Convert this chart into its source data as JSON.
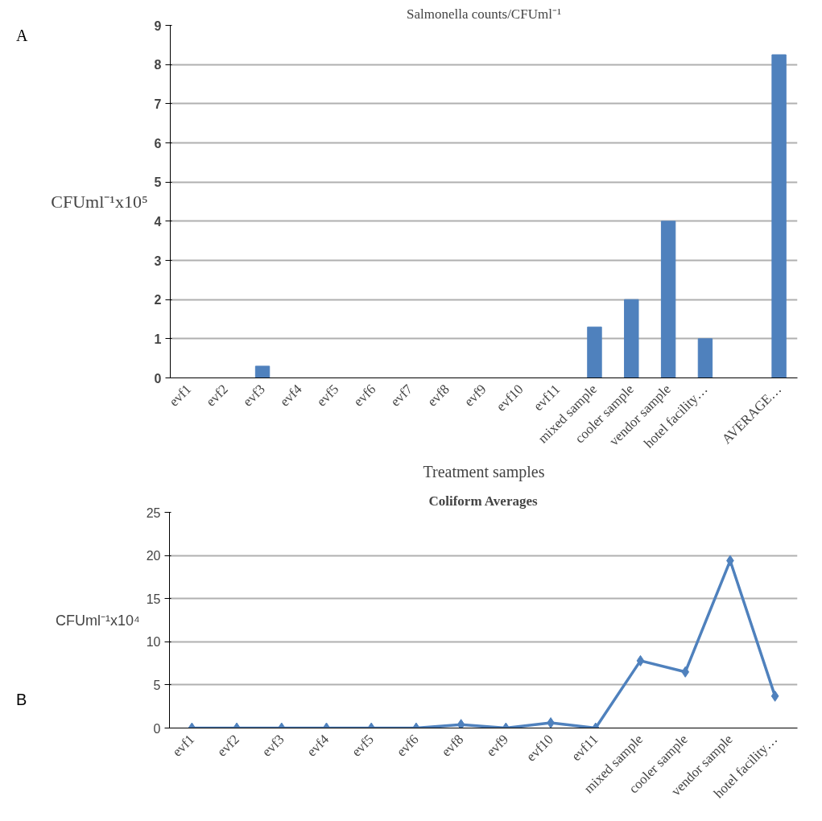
{
  "chart_data": [
    {
      "type": "bar",
      "title": "Salmonella counts/CFUml⁻¹",
      "xlabel": "Treatment samples",
      "ylabel": "CFUml⁻¹x10⁵",
      "annotations": [
        "A"
      ],
      "categories": [
        "evf1",
        "evf2",
        "evf3",
        "evf4",
        "evf5",
        "evf6",
        "evf7",
        "evf8",
        "evf9",
        "evf10",
        "evf11",
        "mixed sample",
        "cooler sample",
        "vendor sample",
        "hotel facility…",
        null,
        "AVERAGE…"
      ],
      "values": [
        0,
        0,
        0.3,
        0,
        0,
        0,
        0,
        0,
        0,
        0,
        0,
        1.3,
        2,
        4,
        1,
        null,
        8.25
      ],
      "color": "#4f81bd",
      "ylim": [
        0,
        9
      ],
      "yticks": [
        0,
        1,
        2,
        3,
        4,
        5,
        6,
        7,
        8,
        9
      ],
      "grid": "y"
    },
    {
      "type": "line",
      "title": "Coliform Averages",
      "ylabel": "CFUml⁻¹x10⁴",
      "annotations": [
        "B"
      ],
      "categories": [
        "evf1",
        "evf2",
        "evf3",
        "evf4",
        "evf5",
        "evf6",
        "evf8",
        "evf9",
        "evf10",
        "evf11",
        "mixed sample",
        "cooler sample",
        "vendor sample",
        "hotel facility…"
      ],
      "values": [
        0,
        0,
        0,
        0,
        0,
        0,
        0.4,
        0,
        0.6,
        0,
        7.8,
        6.5,
        19.4,
        3.7
      ],
      "color": "#4f81bd",
      "ylim": [
        0,
        25
      ],
      "yticks": [
        0,
        5,
        10,
        15,
        20,
        25
      ],
      "grid": "y",
      "marker": "diamond",
      "line_style": "solid"
    }
  ]
}
